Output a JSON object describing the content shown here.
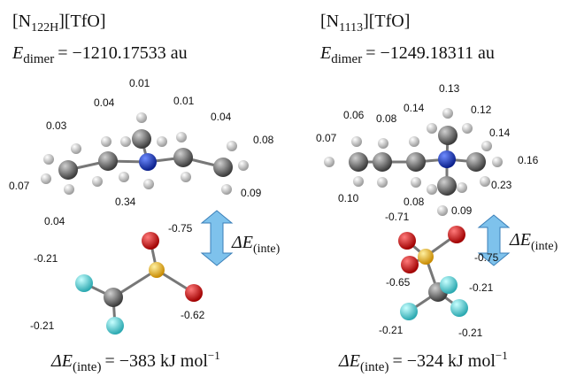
{
  "panels": [
    {
      "name": {
        "base": "[N",
        "sub": "122H",
        "rest": "][TfO]"
      },
      "energy": {
        "symbol": "E",
        "sub": "dimer",
        "value": "= −1210.17533 au"
      },
      "arrow_label": {
        "symbol": "ΔE",
        "sub": "(inte)"
      },
      "interaction": {
        "symbol": "ΔE",
        "sub": "(inte)",
        "value": "= −383 kJ mol",
        "sup": "−1"
      },
      "cation_charges": [
        "0.01",
        "0.04",
        "0.01",
        "0.04",
        "0.03",
        "0.08",
        "0.07",
        "0.09",
        "0.04",
        "0.34"
      ],
      "anion_charges": [
        "-0.75",
        "-0.21",
        "-0.21",
        "-0.62"
      ]
    },
    {
      "name": {
        "base": "[N",
        "sub": "1113",
        "rest": "][TfO]"
      },
      "energy": {
        "symbol": "E",
        "sub": "dimer",
        "value": "= −1249.18311 au"
      },
      "arrow_label": {
        "symbol": "ΔE",
        "sub": "(inte)"
      },
      "interaction": {
        "symbol": "ΔE",
        "sub": "(inte)",
        "value": "= −324 kJ mol",
        "sup": "−1"
      },
      "cation_charges": [
        "0.13",
        "0.06",
        "0.08",
        "0.14",
        "0.12",
        "0.14",
        "0.07",
        "0.16",
        "0.10",
        "0.08",
        "0.09",
        "0.23"
      ],
      "anion_charges": [
        "-0.71",
        "-0.75",
        "-0.65",
        "-0.21",
        "-0.21",
        "-0.21"
      ]
    }
  ]
}
